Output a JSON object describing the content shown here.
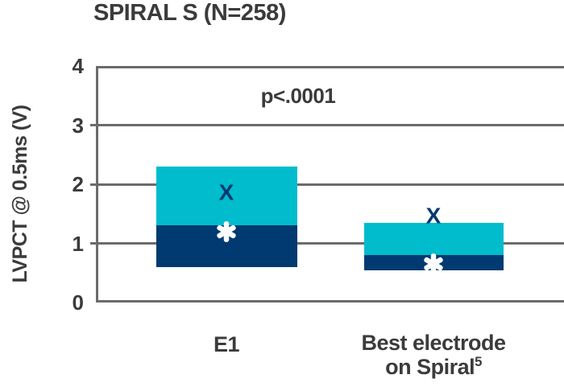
{
  "chart_data": {
    "type": "bar",
    "title": "SPIRAL S (N=258)",
    "ylabel": "LVPCT @ 0.5ms (V)",
    "annotation": "p<.0001",
    "ylim": [
      0,
      4
    ],
    "yticks": [
      0,
      1,
      2,
      3,
      4
    ],
    "grid": "horizontal gridlines at y=1,2,3; solid top border at y=4; no right border",
    "legend_position": "none",
    "bar_style": "stacked range box: dark navy lower segment, cyan upper segment, with navy X marker and white asterisk marker",
    "categories": [
      "E1",
      "Best electrode on Spiral(5)"
    ],
    "bars": [
      {
        "category_lines": [
          "E1"
        ],
        "category_superscript": "",
        "box_low": 0.6,
        "segment_boundary": 1.3,
        "box_high": 2.3,
        "x_marker_value": 1.85,
        "asterisk_marker_value": 1.2
      },
      {
        "category_lines": [
          "Best electrode",
          "on Spiral"
        ],
        "category_superscript": "5",
        "box_low": 0.55,
        "segment_boundary": 0.8,
        "box_high": 1.35,
        "x_marker_value": 1.45,
        "asterisk_marker_value": 0.65
      }
    ],
    "colors": {
      "upper_segment": "#00BCCC",
      "lower_segment": "#003A70",
      "x_marker": "#003A70",
      "asterisk_marker": "#FFFFFF",
      "axis_grid": "#6B6B6B",
      "text": "#3B3B3B"
    }
  }
}
